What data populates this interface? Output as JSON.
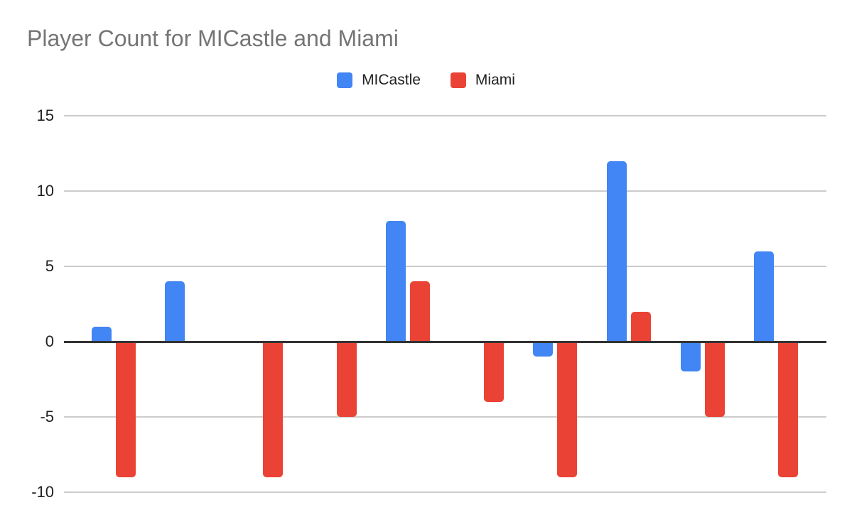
{
  "title": "Player Count for MICastle and Miami",
  "legend": {
    "items": [
      {
        "label": "MICastle",
        "color": "#4285F4"
      },
      {
        "label": "Miami",
        "color": "#EA4335"
      }
    ]
  },
  "y_axis": {
    "ticks": [
      {
        "label": "15",
        "value": 15
      },
      {
        "label": "10",
        "value": 10
      },
      {
        "label": "5",
        "value": 5
      },
      {
        "label": "0",
        "value": 0
      },
      {
        "label": "-5",
        "value": -5
      },
      {
        "label": "-10",
        "value": -10
      }
    ]
  },
  "chart_data": {
    "type": "bar",
    "title": "Player Count for MICastle and Miami",
    "categories": [
      "",
      "",
      "",
      "",
      "",
      "",
      "",
      "",
      "",
      ""
    ],
    "series": [
      {
        "name": "MICastle",
        "color": "#4285F4",
        "values": [
          1,
          4,
          0,
          0,
          8,
          0,
          -1,
          12,
          -2,
          6
        ]
      },
      {
        "name": "Miami",
        "color": "#EA4335",
        "values": [
          -9,
          0,
          -9,
          -5,
          4,
          -4,
          -9,
          2,
          -5,
          -9
        ]
      }
    ],
    "ylim": [
      -10,
      15
    ],
    "y_tick_step": 5,
    "grid": true,
    "zero_line": true,
    "legend_position": "top",
    "x_tick_labels_visible": false,
    "xlabel": "",
    "ylabel": ""
  },
  "colors": {
    "background": "#FFFFFF",
    "gridline": "#CCCCCC",
    "zero_line": "#333333",
    "title_text": "#757575",
    "axis_label_text": "#212121",
    "legend_text": "#212121",
    "series_micastle": "#4285F4",
    "series_miami": "#EA4335"
  }
}
